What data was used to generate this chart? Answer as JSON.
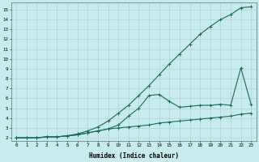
{
  "xlabel": "Humidex (Indice chaleur)",
  "bg_color": "#c8ecec",
  "grid_color": "#b0cccc",
  "line_color": "#1a6b5a",
  "line1_points": [
    [
      0,
      2.0
    ],
    [
      1,
      2.0
    ],
    [
      2,
      2.0
    ],
    [
      3,
      2.1
    ],
    [
      4,
      2.1
    ],
    [
      5,
      2.2
    ],
    [
      6,
      2.4
    ],
    [
      7,
      2.7
    ],
    [
      8,
      3.1
    ],
    [
      9,
      3.7
    ],
    [
      10,
      4.5
    ],
    [
      11,
      5.3
    ],
    [
      12,
      6.3
    ],
    [
      13,
      7.3
    ],
    [
      14,
      8.4
    ],
    [
      15,
      9.5
    ],
    [
      16,
      10.5
    ],
    [
      17,
      11.5
    ],
    [
      18,
      12.5
    ],
    [
      19,
      13.3
    ],
    [
      20,
      14.0
    ],
    [
      21,
      14.5
    ],
    [
      22,
      15.2
    ],
    [
      23,
      15.3
    ]
  ],
  "line2_points": [
    [
      0,
      2.0
    ],
    [
      1,
      2.0
    ],
    [
      2,
      2.0
    ],
    [
      3,
      2.1
    ],
    [
      4,
      2.1
    ],
    [
      5,
      2.2
    ],
    [
      6,
      2.3
    ],
    [
      7,
      2.5
    ],
    [
      8,
      2.7
    ],
    [
      9,
      2.9
    ],
    [
      10,
      3.3
    ],
    [
      11,
      4.2
    ],
    [
      12,
      5.0
    ],
    [
      13,
      6.3
    ],
    [
      14,
      6.4
    ],
    [
      15,
      5.7
    ],
    [
      16,
      5.1
    ],
    [
      17,
      5.2
    ],
    [
      18,
      5.3
    ],
    [
      19,
      5.3
    ],
    [
      20,
      5.4
    ],
    [
      21,
      5.3
    ],
    [
      22,
      9.1
    ],
    [
      23,
      5.4
    ]
  ],
  "line3_points": [
    [
      0,
      2.0
    ],
    [
      1,
      2.0
    ],
    [
      2,
      2.0
    ],
    [
      3,
      2.1
    ],
    [
      4,
      2.1
    ],
    [
      5,
      2.2
    ],
    [
      6,
      2.3
    ],
    [
      7,
      2.5
    ],
    [
      8,
      2.7
    ],
    [
      9,
      2.9
    ],
    [
      10,
      3.0
    ],
    [
      11,
      3.1
    ],
    [
      12,
      3.2
    ],
    [
      13,
      3.3
    ],
    [
      14,
      3.5
    ],
    [
      15,
      3.6
    ],
    [
      16,
      3.7
    ],
    [
      17,
      3.8
    ],
    [
      18,
      3.9
    ],
    [
      19,
      4.0
    ],
    [
      20,
      4.1
    ],
    [
      21,
      4.2
    ],
    [
      22,
      4.4
    ],
    [
      23,
      4.5
    ]
  ],
  "ylim": [
    1.7,
    15.7
  ],
  "xlim": [
    -0.5,
    23.5
  ],
  "yticks": [
    2,
    3,
    4,
    5,
    6,
    7,
    8,
    9,
    10,
    11,
    12,
    13,
    14,
    15
  ],
  "xticks": [
    0,
    1,
    2,
    3,
    4,
    5,
    6,
    7,
    8,
    9,
    10,
    11,
    12,
    13,
    14,
    15,
    16,
    17,
    18,
    19,
    20,
    21,
    22,
    23
  ]
}
